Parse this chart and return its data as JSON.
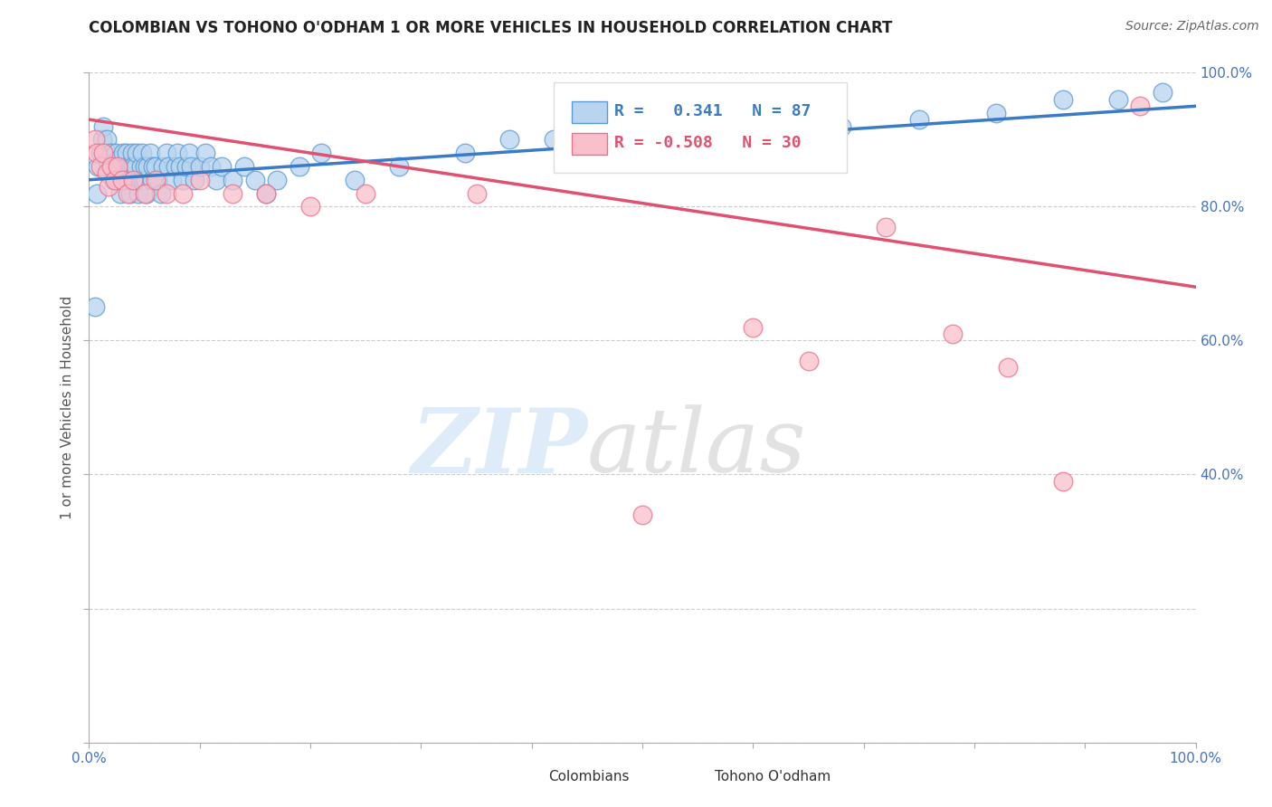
{
  "title": "COLOMBIAN VS TOHONO O'ODHAM 1 OR MORE VEHICLES IN HOUSEHOLD CORRELATION CHART",
  "source": "Source: ZipAtlas.com",
  "ylabel": "1 or more Vehicles in Household",
  "xlim": [
    0.0,
    1.0
  ],
  "ylim": [
    0.0,
    1.0
  ],
  "x_ticks": [
    0.0,
    0.1,
    0.2,
    0.3,
    0.4,
    0.5,
    0.6,
    0.7,
    0.8,
    0.9,
    1.0
  ],
  "y_ticks": [
    0.0,
    0.2,
    0.4,
    0.6,
    0.8,
    1.0
  ],
  "x_tick_labels_shown": [
    "0.0%",
    "100.0%"
  ],
  "y_tick_labels": [
    "",
    "",
    "40.0%",
    "60.0%",
    "80.0%",
    "100.0%"
  ],
  "watermark_zip": "ZIP",
  "watermark_atlas": "atlas",
  "legend_labels": [
    "Colombians",
    "Tohono O'odham"
  ],
  "R_colombian": 0.341,
  "N_colombian": 87,
  "R_tohono": -0.508,
  "N_tohono": 30,
  "colombian_color": "#b8d4ee",
  "tohono_color": "#f9bfcc",
  "colombian_edge_color": "#5b9bd5",
  "tohono_edge_color": "#e8728a",
  "colombian_line_color": "#3a7bc8",
  "tohono_line_color": "#e05070",
  "label_color": "#4472c4",
  "background_color": "#ffffff",
  "grid_color": "#cccccc",
  "colombian_trendline_x": [
    0.0,
    1.0
  ],
  "colombian_trendline_y": [
    0.84,
    0.95
  ],
  "tohono_trendline_x": [
    0.0,
    1.0
  ],
  "tohono_trendline_y": [
    0.93,
    0.68
  ],
  "colombian_x": [
    0.005,
    0.007,
    0.008,
    0.01,
    0.012,
    0.013,
    0.015,
    0.016,
    0.017,
    0.018,
    0.02,
    0.021,
    0.022,
    0.023,
    0.024,
    0.025,
    0.026,
    0.027,
    0.028,
    0.03,
    0.031,
    0.032,
    0.033,
    0.034,
    0.035,
    0.036,
    0.037,
    0.038,
    0.039,
    0.04,
    0.041,
    0.042,
    0.043,
    0.044,
    0.045,
    0.046,
    0.047,
    0.048,
    0.049,
    0.05,
    0.051,
    0.052,
    0.053,
    0.055,
    0.057,
    0.058,
    0.06,
    0.062,
    0.065,
    0.067,
    0.07,
    0.072,
    0.075,
    0.078,
    0.08,
    0.082,
    0.085,
    0.088,
    0.09,
    0.092,
    0.095,
    0.1,
    0.105,
    0.11,
    0.115,
    0.12,
    0.13,
    0.14,
    0.15,
    0.16,
    0.17,
    0.19,
    0.21,
    0.24,
    0.28,
    0.34,
    0.38,
    0.42,
    0.47,
    0.54,
    0.6,
    0.68,
    0.75,
    0.82,
    0.88,
    0.93,
    0.97
  ],
  "colombian_y": [
    0.65,
    0.82,
    0.86,
    0.88,
    0.9,
    0.92,
    0.88,
    0.9,
    0.87,
    0.85,
    0.88,
    0.86,
    0.84,
    0.86,
    0.88,
    0.85,
    0.87,
    0.84,
    0.82,
    0.86,
    0.88,
    0.84,
    0.86,
    0.88,
    0.86,
    0.84,
    0.82,
    0.86,
    0.88,
    0.86,
    0.84,
    0.86,
    0.88,
    0.84,
    0.82,
    0.84,
    0.86,
    0.88,
    0.84,
    0.86,
    0.84,
    0.82,
    0.86,
    0.88,
    0.84,
    0.86,
    0.86,
    0.84,
    0.82,
    0.86,
    0.88,
    0.86,
    0.84,
    0.86,
    0.88,
    0.86,
    0.84,
    0.86,
    0.88,
    0.86,
    0.84,
    0.86,
    0.88,
    0.86,
    0.84,
    0.86,
    0.84,
    0.86,
    0.84,
    0.82,
    0.84,
    0.86,
    0.88,
    0.84,
    0.86,
    0.88,
    0.9,
    0.9,
    0.88,
    0.9,
    0.91,
    0.92,
    0.93,
    0.94,
    0.96,
    0.96,
    0.97
  ],
  "tohono_x": [
    0.005,
    0.007,
    0.01,
    0.013,
    0.016,
    0.018,
    0.02,
    0.023,
    0.026,
    0.03,
    0.035,
    0.04,
    0.05,
    0.06,
    0.07,
    0.085,
    0.1,
    0.13,
    0.16,
    0.2,
    0.25,
    0.35,
    0.5,
    0.6,
    0.65,
    0.72,
    0.78,
    0.83,
    0.88,
    0.95
  ],
  "tohono_y": [
    0.9,
    0.88,
    0.86,
    0.88,
    0.85,
    0.83,
    0.86,
    0.84,
    0.86,
    0.84,
    0.82,
    0.84,
    0.82,
    0.84,
    0.82,
    0.82,
    0.84,
    0.82,
    0.82,
    0.8,
    0.82,
    0.82,
    0.34,
    0.62,
    0.57,
    0.77,
    0.61,
    0.56,
    0.39,
    0.95
  ]
}
